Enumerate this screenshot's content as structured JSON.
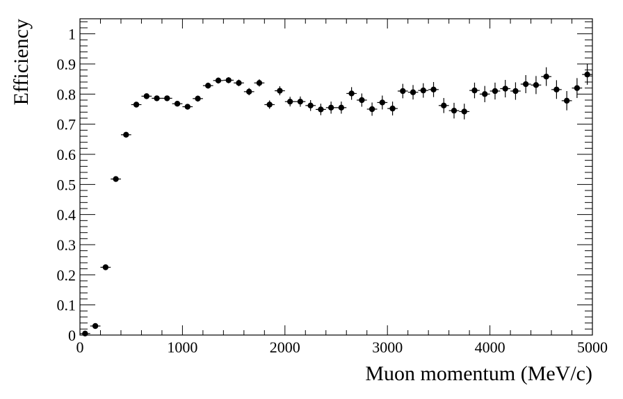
{
  "chart_data": {
    "type": "scatter",
    "title": "",
    "xlabel": "Muon momentum (MeV/c)",
    "ylabel": "Efficiency",
    "xlim": [
      0,
      5000
    ],
    "ylim": [
      0,
      1.05
    ],
    "x_ticks": [
      "0",
      "1000",
      "2000",
      "3000",
      "4000",
      "5000"
    ],
    "y_ticks": [
      "0",
      "0.1",
      "0.2",
      "0.3",
      "0.4",
      "0.5",
      "0.6",
      "0.7",
      "0.8",
      "0.9",
      "1"
    ],
    "grid": false,
    "legend": "none",
    "x_error": 50,
    "marker_color": "#000000",
    "series": [
      {
        "x": [
          50,
          150,
          250,
          350,
          450,
          550,
          650,
          750,
          850,
          950,
          1050,
          1150,
          1250,
          1350,
          1450,
          1550,
          1650,
          1750,
          1850,
          1950,
          2050,
          2150,
          2250,
          2350,
          2450,
          2550,
          2650,
          2750,
          2850,
          2950,
          3050,
          3150,
          3250,
          3350,
          3450,
          3550,
          3650,
          3750,
          3850,
          3950,
          4050,
          4150,
          4250,
          4350,
          4450,
          4550,
          4650,
          4750,
          4850,
          4950
        ],
        "y": [
          0.005,
          0.03,
          0.225,
          0.518,
          0.665,
          0.765,
          0.793,
          0.786,
          0.786,
          0.768,
          0.758,
          0.785,
          0.828,
          0.845,
          0.846,
          0.837,
          0.808,
          0.837,
          0.765,
          0.811,
          0.775,
          0.775,
          0.762,
          0.749,
          0.755,
          0.755,
          0.802,
          0.78,
          0.75,
          0.772,
          0.752,
          0.81,
          0.806,
          0.812,
          0.815,
          0.762,
          0.745,
          0.742,
          0.812,
          0.8,
          0.81,
          0.818,
          0.81,
          0.833,
          0.83,
          0.858,
          0.815,
          0.778,
          0.82,
          0.865
        ],
        "y_err": [
          0.003,
          0.005,
          0.005,
          0.005,
          0.005,
          0.005,
          0.006,
          0.006,
          0.007,
          0.008,
          0.009,
          0.01,
          0.01,
          0.01,
          0.01,
          0.011,
          0.012,
          0.012,
          0.014,
          0.015,
          0.016,
          0.017,
          0.018,
          0.019,
          0.02,
          0.02,
          0.021,
          0.022,
          0.022,
          0.023,
          0.023,
          0.024,
          0.024,
          0.024,
          0.025,
          0.025,
          0.026,
          0.026,
          0.026,
          0.027,
          0.028,
          0.029,
          0.029,
          0.03,
          0.03,
          0.031,
          0.031,
          0.032,
          0.033,
          0.034
        ]
      }
    ]
  }
}
